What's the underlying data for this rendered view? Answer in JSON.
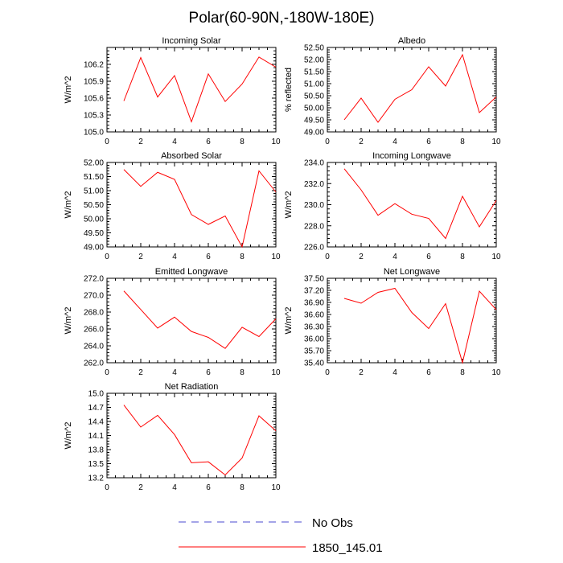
{
  "title": "Polar(60-90N,-180W-180E)",
  "colors": {
    "model": "#ff0000",
    "obs": "#4a4ad0",
    "axis": "#000000"
  },
  "legend": {
    "obs_label": "No Obs",
    "model_label": "1850_145.01"
  },
  "chart_data": [
    {
      "type": "line",
      "title": "Incoming Solar",
      "ylabel": "W/m^2",
      "xlim": [
        0,
        10
      ],
      "ylim": [
        105.0,
        106.5
      ],
      "xticks": [
        0,
        2,
        4,
        6,
        8,
        10
      ],
      "xtick_labels": [
        "0",
        "2",
        "4",
        "6",
        "8",
        "10"
      ],
      "yticks": [
        105.0,
        105.3,
        105.6,
        105.9,
        106.2
      ],
      "ytick_labels": [
        "105.0",
        "105.3",
        "105.6",
        "105.9",
        "106.2"
      ],
      "series": [
        {
          "name": "1850_145.01",
          "x": [
            1,
            2,
            3,
            4,
            5,
            6,
            7,
            8,
            9,
            10
          ],
          "values": [
            105.55,
            106.32,
            105.62,
            106.0,
            105.18,
            106.03,
            105.54,
            105.85,
            106.33,
            106.15
          ]
        }
      ]
    },
    {
      "type": "line",
      "title": "Albedo",
      "ylabel": "% reflected",
      "xlim": [
        0,
        10
      ],
      "ylim": [
        49.0,
        52.5
      ],
      "xticks": [
        0,
        2,
        4,
        6,
        8,
        10
      ],
      "xtick_labels": [
        "0",
        "2",
        "4",
        "6",
        "8",
        "10"
      ],
      "yticks": [
        49.0,
        49.5,
        50.0,
        50.5,
        51.0,
        51.5,
        52.0,
        52.5
      ],
      "ytick_labels": [
        "49.00",
        "49.50",
        "50.00",
        "50.50",
        "51.00",
        "51.50",
        "52.00",
        "52.50"
      ],
      "series": [
        {
          "name": "1850_145.01",
          "x": [
            1,
            2,
            3,
            4,
            5,
            6,
            7,
            8,
            9,
            10
          ],
          "values": [
            49.5,
            50.4,
            49.4,
            50.35,
            50.75,
            51.7,
            50.9,
            52.2,
            49.8,
            50.45
          ]
        }
      ]
    },
    {
      "type": "line",
      "title": "Absorbed Solar",
      "ylabel": "W/m^2",
      "xlim": [
        0,
        10
      ],
      "ylim": [
        49.0,
        52.0
      ],
      "xticks": [
        0,
        2,
        4,
        6,
        8,
        10
      ],
      "xtick_labels": [
        "0",
        "2",
        "4",
        "6",
        "8",
        "10"
      ],
      "yticks": [
        49.0,
        49.5,
        50.0,
        50.5,
        51.0,
        51.5,
        52.0
      ],
      "ytick_labels": [
        "49.00",
        "49.50",
        "50.00",
        "50.50",
        "51.00",
        "51.50",
        "52.00"
      ],
      "series": [
        {
          "name": "1850_145.01",
          "x": [
            1,
            2,
            3,
            4,
            5,
            6,
            7,
            8,
            9,
            10
          ],
          "values": [
            51.75,
            51.15,
            51.65,
            51.4,
            50.15,
            49.8,
            50.1,
            49.0,
            51.7,
            50.95
          ]
        }
      ]
    },
    {
      "type": "line",
      "title": "Incoming Longwave",
      "ylabel": "W/m^2",
      "xlim": [
        0,
        10
      ],
      "ylim": [
        226.0,
        234.0
      ],
      "xticks": [
        0,
        2,
        4,
        6,
        8,
        10
      ],
      "xtick_labels": [
        "0",
        "2",
        "4",
        "6",
        "8",
        "10"
      ],
      "yticks": [
        226.0,
        228.0,
        230.0,
        232.0,
        234.0
      ],
      "ytick_labels": [
        "226.0",
        "228.0",
        "230.0",
        "232.0",
        "234.0"
      ],
      "series": [
        {
          "name": "1850_145.01",
          "x": [
            1,
            2,
            3,
            4,
            5,
            6,
            7,
            8,
            9,
            10
          ],
          "values": [
            233.4,
            231.4,
            229.0,
            230.1,
            229.1,
            228.7,
            226.8,
            230.8,
            227.9,
            230.4
          ]
        }
      ]
    },
    {
      "type": "line",
      "title": "Emitted Longwave",
      "ylabel": "W/m^2",
      "xlim": [
        0,
        10
      ],
      "ylim": [
        262.0,
        272.0
      ],
      "xticks": [
        0,
        2,
        4,
        6,
        8,
        10
      ],
      "xtick_labels": [
        "0",
        "2",
        "4",
        "6",
        "8",
        "10"
      ],
      "yticks": [
        262.0,
        264.0,
        266.0,
        268.0,
        270.0,
        272.0
      ],
      "ytick_labels": [
        "262.0",
        "264.0",
        "266.0",
        "268.0",
        "270.0",
        "272.0"
      ],
      "series": [
        {
          "name": "1850_145.01",
          "x": [
            1,
            2,
            3,
            4,
            5,
            6,
            7,
            8,
            9,
            10
          ],
          "values": [
            270.5,
            268.3,
            266.1,
            267.4,
            265.7,
            265.0,
            263.7,
            266.2,
            265.1,
            267.2
          ]
        }
      ]
    },
    {
      "type": "line",
      "title": "Net Longwave",
      "ylabel": "W/m^2",
      "xlim": [
        0,
        10
      ],
      "ylim": [
        35.4,
        37.5
      ],
      "xticks": [
        0,
        2,
        4,
        6,
        8,
        10
      ],
      "xtick_labels": [
        "0",
        "2",
        "4",
        "6",
        "8",
        "10"
      ],
      "yticks": [
        35.4,
        35.7,
        36.0,
        36.3,
        36.6,
        36.9,
        37.2,
        37.5
      ],
      "ytick_labels": [
        "35.40",
        "35.70",
        "36.00",
        "36.30",
        "36.60",
        "36.90",
        "37.20",
        "37.50"
      ],
      "series": [
        {
          "name": "1850_145.01",
          "x": [
            1,
            2,
            3,
            4,
            5,
            6,
            7,
            8,
            9,
            10
          ],
          "values": [
            37.0,
            36.88,
            37.15,
            37.25,
            36.65,
            36.25,
            36.87,
            35.4,
            37.18,
            36.72
          ]
        }
      ]
    },
    {
      "type": "line",
      "title": "Net Radiation",
      "ylabel": "W/m^2",
      "xlim": [
        0,
        10
      ],
      "ylim": [
        13.2,
        15.0
      ],
      "xticks": [
        0,
        2,
        4,
        6,
        8,
        10
      ],
      "xtick_labels": [
        "0",
        "2",
        "4",
        "6",
        "8",
        "10"
      ],
      "yticks": [
        13.2,
        13.5,
        13.8,
        14.1,
        14.4,
        14.7,
        15.0
      ],
      "ytick_labels": [
        "13.2",
        "13.5",
        "13.8",
        "14.1",
        "14.4",
        "14.7",
        "15.0"
      ],
      "series": [
        {
          "name": "1850_145.01",
          "x": [
            1,
            2,
            3,
            4,
            5,
            6,
            7,
            8,
            9,
            10
          ],
          "values": [
            14.75,
            14.28,
            14.53,
            14.12,
            13.52,
            13.54,
            13.26,
            13.62,
            14.52,
            14.2
          ]
        }
      ]
    }
  ]
}
